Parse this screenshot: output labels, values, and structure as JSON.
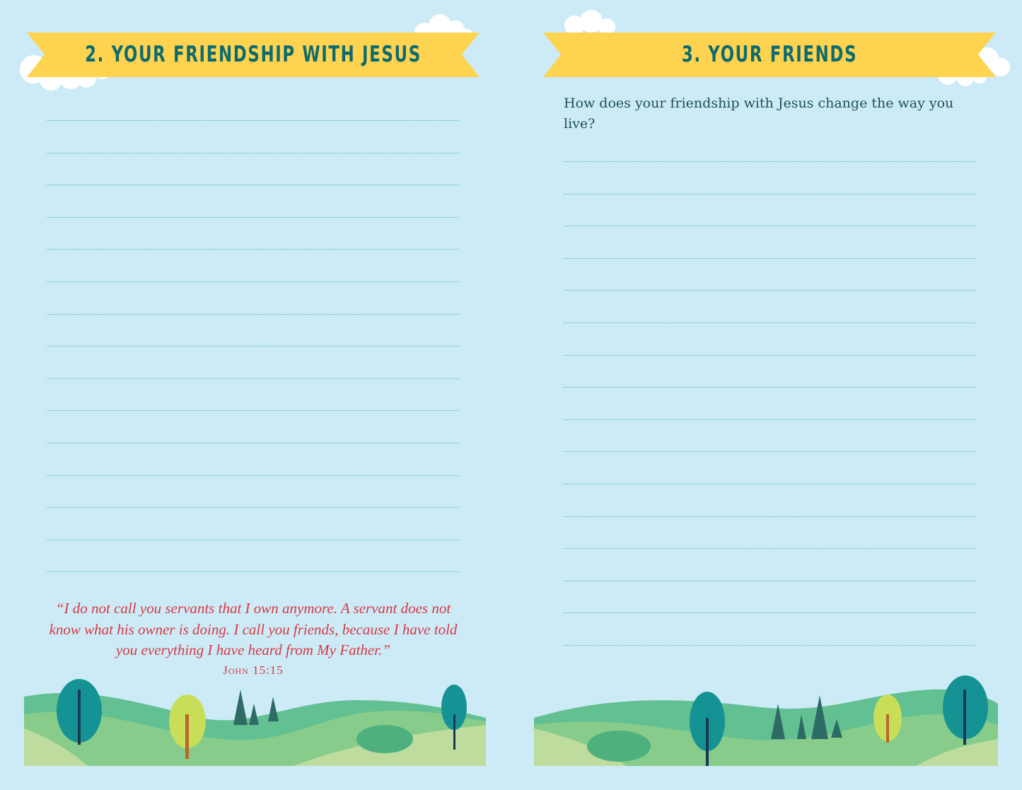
{
  "left_page": {
    "banner_title": "2. YOUR FRIENDSHIP WITH JESUS",
    "quote": "“I do not call you servants that I own anymore. A servant does not know what his owner is doing. I call you friends, because I have told you everything I have heard from My Father.”",
    "reference": "John 15:15",
    "writing_lines": 15
  },
  "right_page": {
    "banner_title": "3. YOUR FRIENDS",
    "prompt": "How does your friendship with Jesus change the way you live?",
    "writing_lines": 16
  },
  "colors": {
    "background": "#cdebf7",
    "banner": "#fed350",
    "title_text": "#0d6b6e",
    "quote_text": "#d63a45"
  }
}
